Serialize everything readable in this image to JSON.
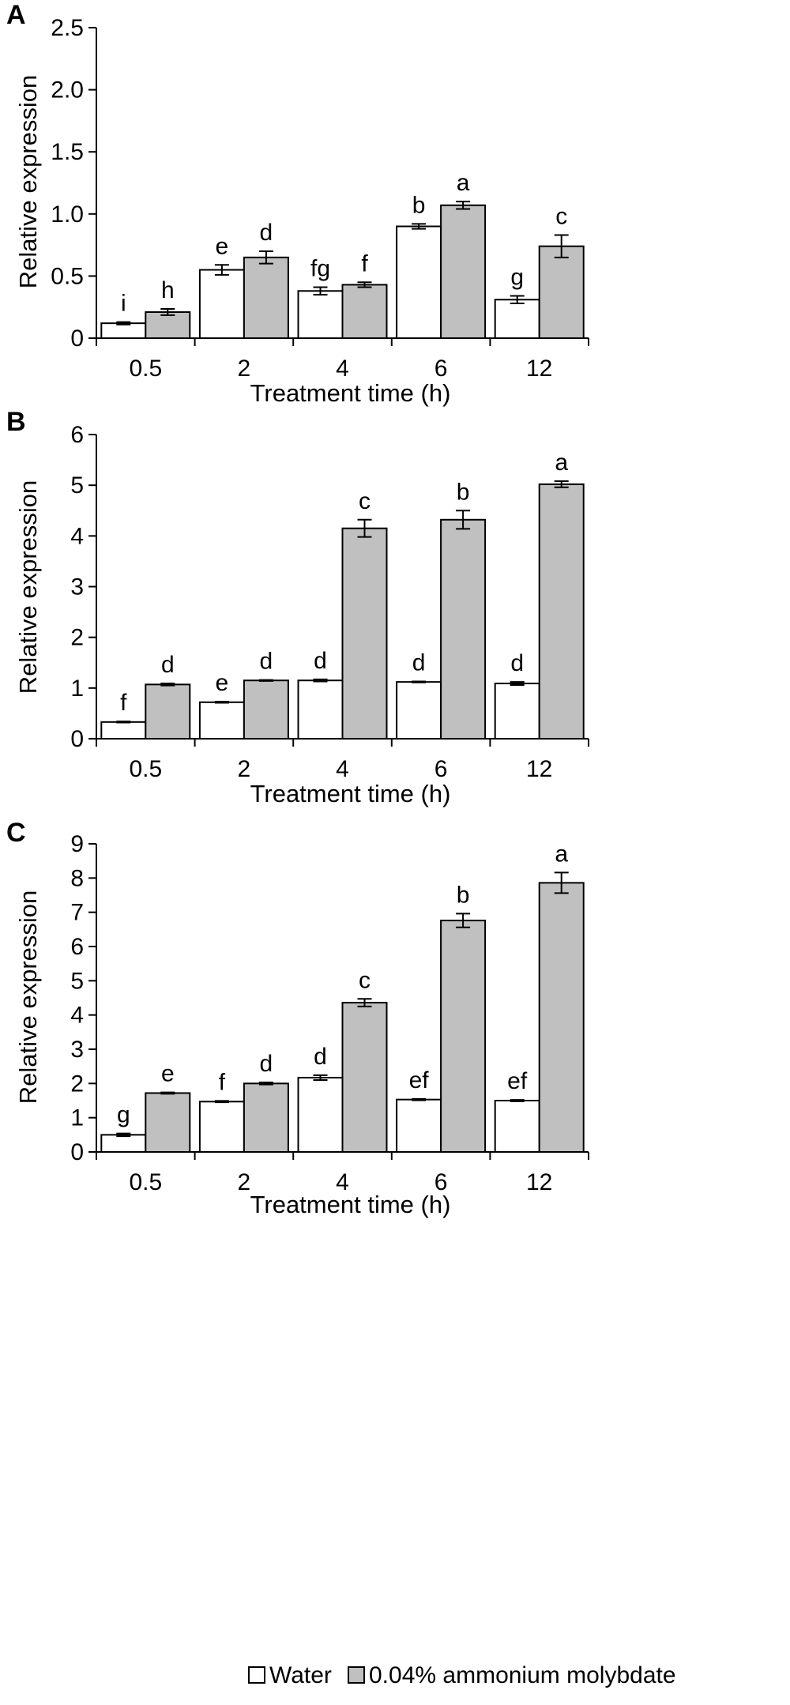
{
  "chart_data": [
    {
      "type": "bar",
      "panel_label": "A",
      "categories": [
        "0.5",
        "2",
        "4",
        "6",
        "12"
      ],
      "xlabel": "Treatment time (h)",
      "ylabel": "Relative expression",
      "ylim": [
        0,
        2.5
      ],
      "yticks": [
        0,
        0.5,
        1.0,
        1.5,
        2.0,
        2.5
      ],
      "ytick_labels": [
        "0",
        "0.5",
        "1.0",
        "1.5",
        "2.0",
        "2.5"
      ],
      "series": [
        {
          "name": "Water",
          "values": [
            0.12,
            0.55,
            0.38,
            0.9,
            0.31
          ],
          "errors": [
            0.01,
            0.04,
            0.03,
            0.02,
            0.03
          ],
          "labels": [
            "i",
            "e",
            "fg",
            "b",
            "g"
          ]
        },
        {
          "name": "0.04% ammonium molybdate",
          "values": [
            0.21,
            0.65,
            0.43,
            1.07,
            0.74
          ],
          "errors": [
            0.025,
            0.05,
            0.02,
            0.03,
            0.09
          ],
          "labels": [
            "h",
            "d",
            "f",
            "a",
            "c"
          ]
        }
      ]
    },
    {
      "type": "bar",
      "panel_label": "B",
      "categories": [
        "0.5",
        "2",
        "4",
        "6",
        "12"
      ],
      "xlabel": "Treatment time (h)",
      "ylabel": "Relative expression",
      "ylim": [
        0,
        6
      ],
      "yticks": [
        0,
        1,
        2,
        3,
        4,
        5,
        6
      ],
      "ytick_labels": [
        "0",
        "1",
        "2",
        "3",
        "4",
        "5",
        "6"
      ],
      "series": [
        {
          "name": "Water",
          "values": [
            0.33,
            0.72,
            1.15,
            1.12,
            1.09
          ],
          "errors": [
            0.01,
            0.01,
            0.02,
            0.01,
            0.03
          ],
          "labels": [
            "f",
            "e",
            "d",
            "d",
            "d"
          ]
        },
        {
          "name": "0.04% ammonium molybdate",
          "values": [
            1.07,
            1.15,
            4.15,
            4.32,
            5.02
          ],
          "errors": [
            0.02,
            0.01,
            0.17,
            0.18,
            0.06
          ],
          "labels": [
            "d",
            "d",
            "c",
            "b",
            "a"
          ]
        }
      ]
    },
    {
      "type": "bar",
      "panel_label": "C",
      "categories": [
        "0.5",
        "2",
        "4",
        "6",
        "12"
      ],
      "xlabel": "Treatment time (h)",
      "ylabel": "Relative expression",
      "ylim": [
        0,
        9
      ],
      "yticks": [
        0,
        1,
        2,
        3,
        4,
        5,
        6,
        7,
        8,
        9
      ],
      "ytick_labels": [
        "0",
        "1",
        "2",
        "3",
        "4",
        "5",
        "6",
        "7",
        "8",
        "9"
      ],
      "series": [
        {
          "name": "Water",
          "values": [
            0.5,
            1.47,
            2.17,
            1.53,
            1.5
          ],
          "errors": [
            0.04,
            0.02,
            0.07,
            0.02,
            0.02
          ],
          "labels": [
            "g",
            "f",
            "d",
            "ef",
            "ef"
          ]
        },
        {
          "name": "0.04% ammonium molybdate",
          "values": [
            1.72,
            2.0,
            4.36,
            6.76,
            7.86
          ],
          "errors": [
            0.02,
            0.03,
            0.11,
            0.2,
            0.3
          ],
          "labels": [
            "e",
            "d",
            "c",
            "b",
            "a"
          ]
        }
      ]
    }
  ],
  "legend": {
    "position": "bottom",
    "items": [
      {
        "label": "Water",
        "color": "#ffffff"
      },
      {
        "label": "0.04% ammonium molybdate",
        "color": "#c0c0c0"
      }
    ]
  },
  "colors": {
    "water": "#ffffff",
    "treatment": "#c0c0c0",
    "outline": "#000000"
  }
}
